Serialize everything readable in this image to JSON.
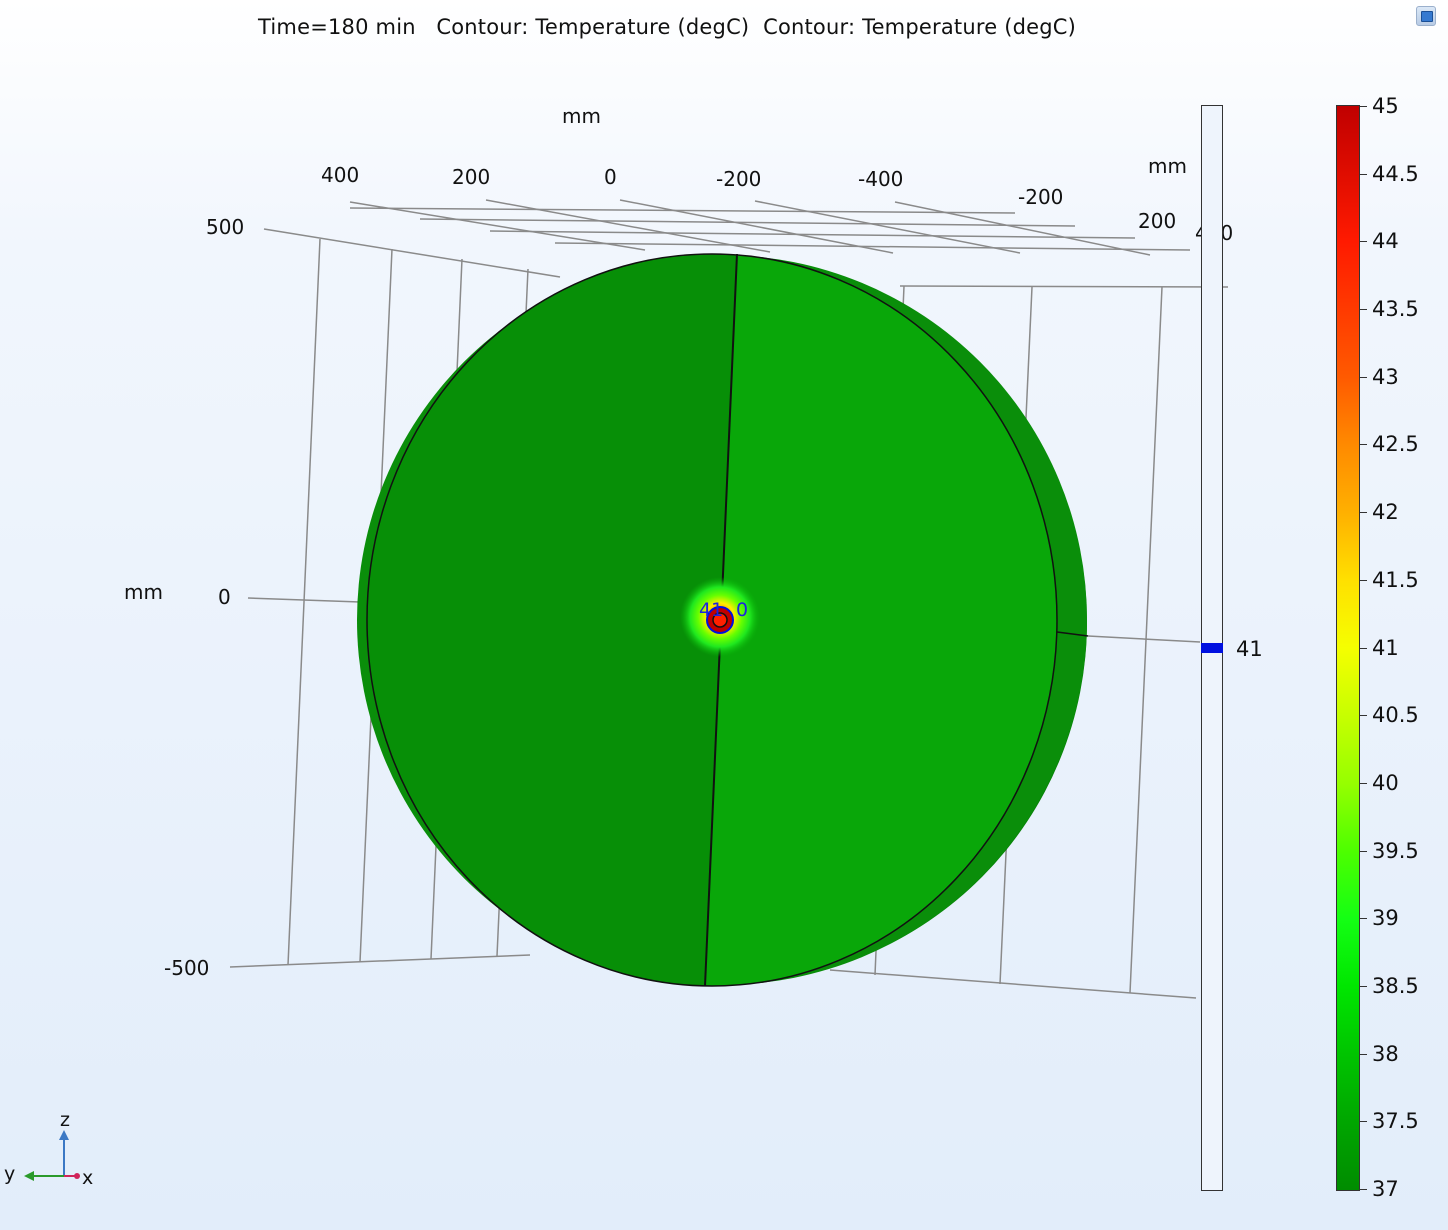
{
  "plot": {
    "title": "Time=180 min   Contour: Temperature (degC)  Contour: Temperature (degC)"
  },
  "axes": {
    "top_unit": "mm",
    "right_unit": "mm",
    "left_unit": "mm",
    "top_ticks": [
      "400",
      "200",
      "0",
      "-200",
      "-400"
    ],
    "right_ticks": [
      "-200",
      "200",
      "400"
    ],
    "vertical_ticks": [
      "500",
      "0",
      "-500"
    ]
  },
  "contour_labels": {
    "inner_left": "41",
    "inner_right": "0"
  },
  "colorbar": {
    "ticks": [
      "45",
      "44.5",
      "44",
      "43.5",
      "43",
      "42.5",
      "42",
      "41.5",
      "41",
      "40.5",
      "40",
      "39.5",
      "39",
      "38.5",
      "38",
      "37.5",
      "37"
    ],
    "colors": {
      "max": "#c00000",
      "mid": "#f5ff00",
      "min": "#008c00"
    }
  },
  "contour_legend": {
    "level": "41",
    "color": "#0010e0"
  },
  "triad": {
    "z": "z",
    "y": "y",
    "x": "x"
  },
  "toolbar": {
    "corner_icon": "window-icon"
  }
}
